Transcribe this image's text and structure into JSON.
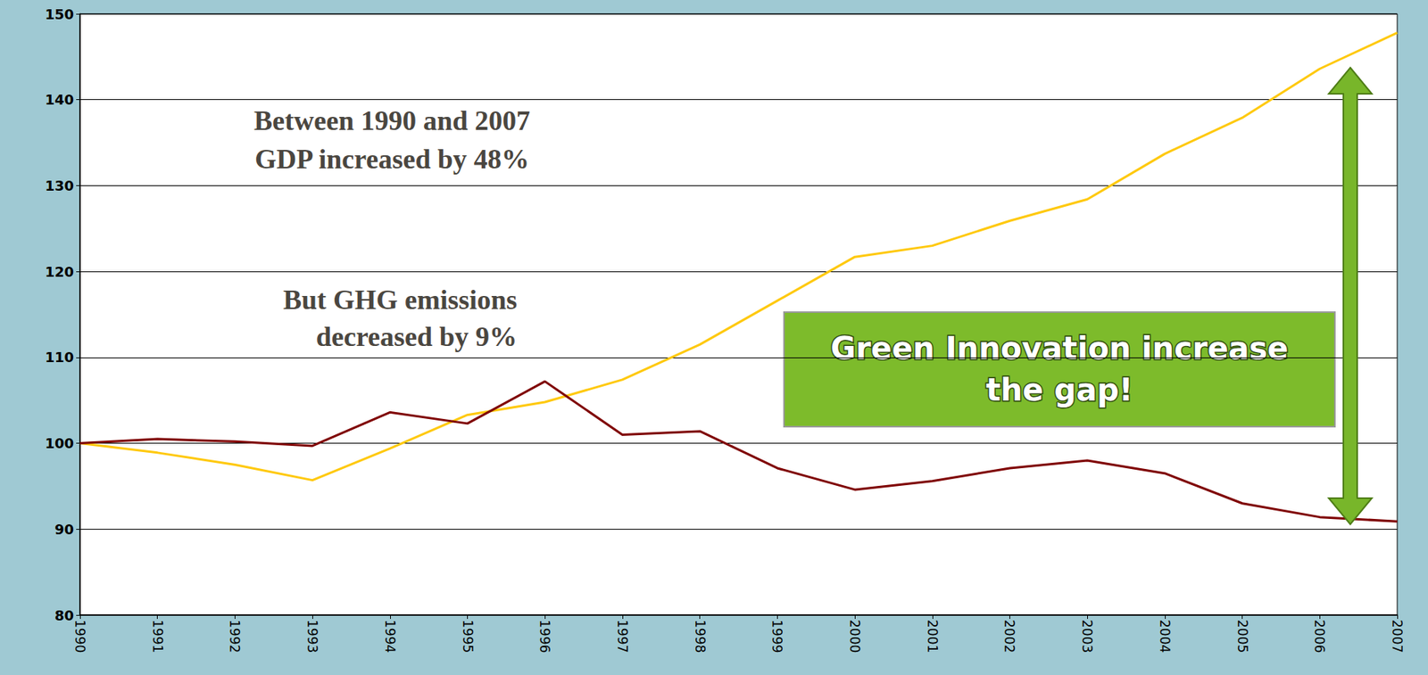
{
  "chart_data": {
    "type": "line",
    "categories": [
      "1990",
      "1991",
      "1992",
      "1993",
      "1994",
      "1995",
      "1996",
      "1997",
      "1998",
      "1999",
      "2000",
      "2001",
      "2002",
      "2003",
      "2004",
      "2005",
      "2006",
      "2007"
    ],
    "series": [
      {
        "color": "#ffc90e",
        "values": [
          100,
          98.9,
          97.5,
          95.7,
          99.4,
          103.3,
          104.8,
          107.4,
          111.5,
          116.6,
          121.7,
          123.0,
          125.9,
          128.4,
          133.7,
          137.9,
          143.6,
          147.8
        ]
      },
      {
        "color": "#7f0000",
        "values": [
          100,
          100.5,
          100.2,
          99.7,
          103.6,
          102.3,
          107.2,
          101.0,
          101.4,
          97.1,
          94.6,
          95.6,
          97.1,
          98.0,
          96.5,
          93.0,
          91.4,
          90.9
        ]
      }
    ],
    "ylim": [
      80,
      150
    ],
    "yticks": [
      80,
      90,
      100,
      110,
      120,
      130,
      140,
      150
    ],
    "grid": true,
    "annotations": [
      "Between 1990 and 2007 GDP increased by 48%",
      "But GHG emissions decreased by 9%",
      "Green Innovation increase the gap!"
    ]
  }
}
